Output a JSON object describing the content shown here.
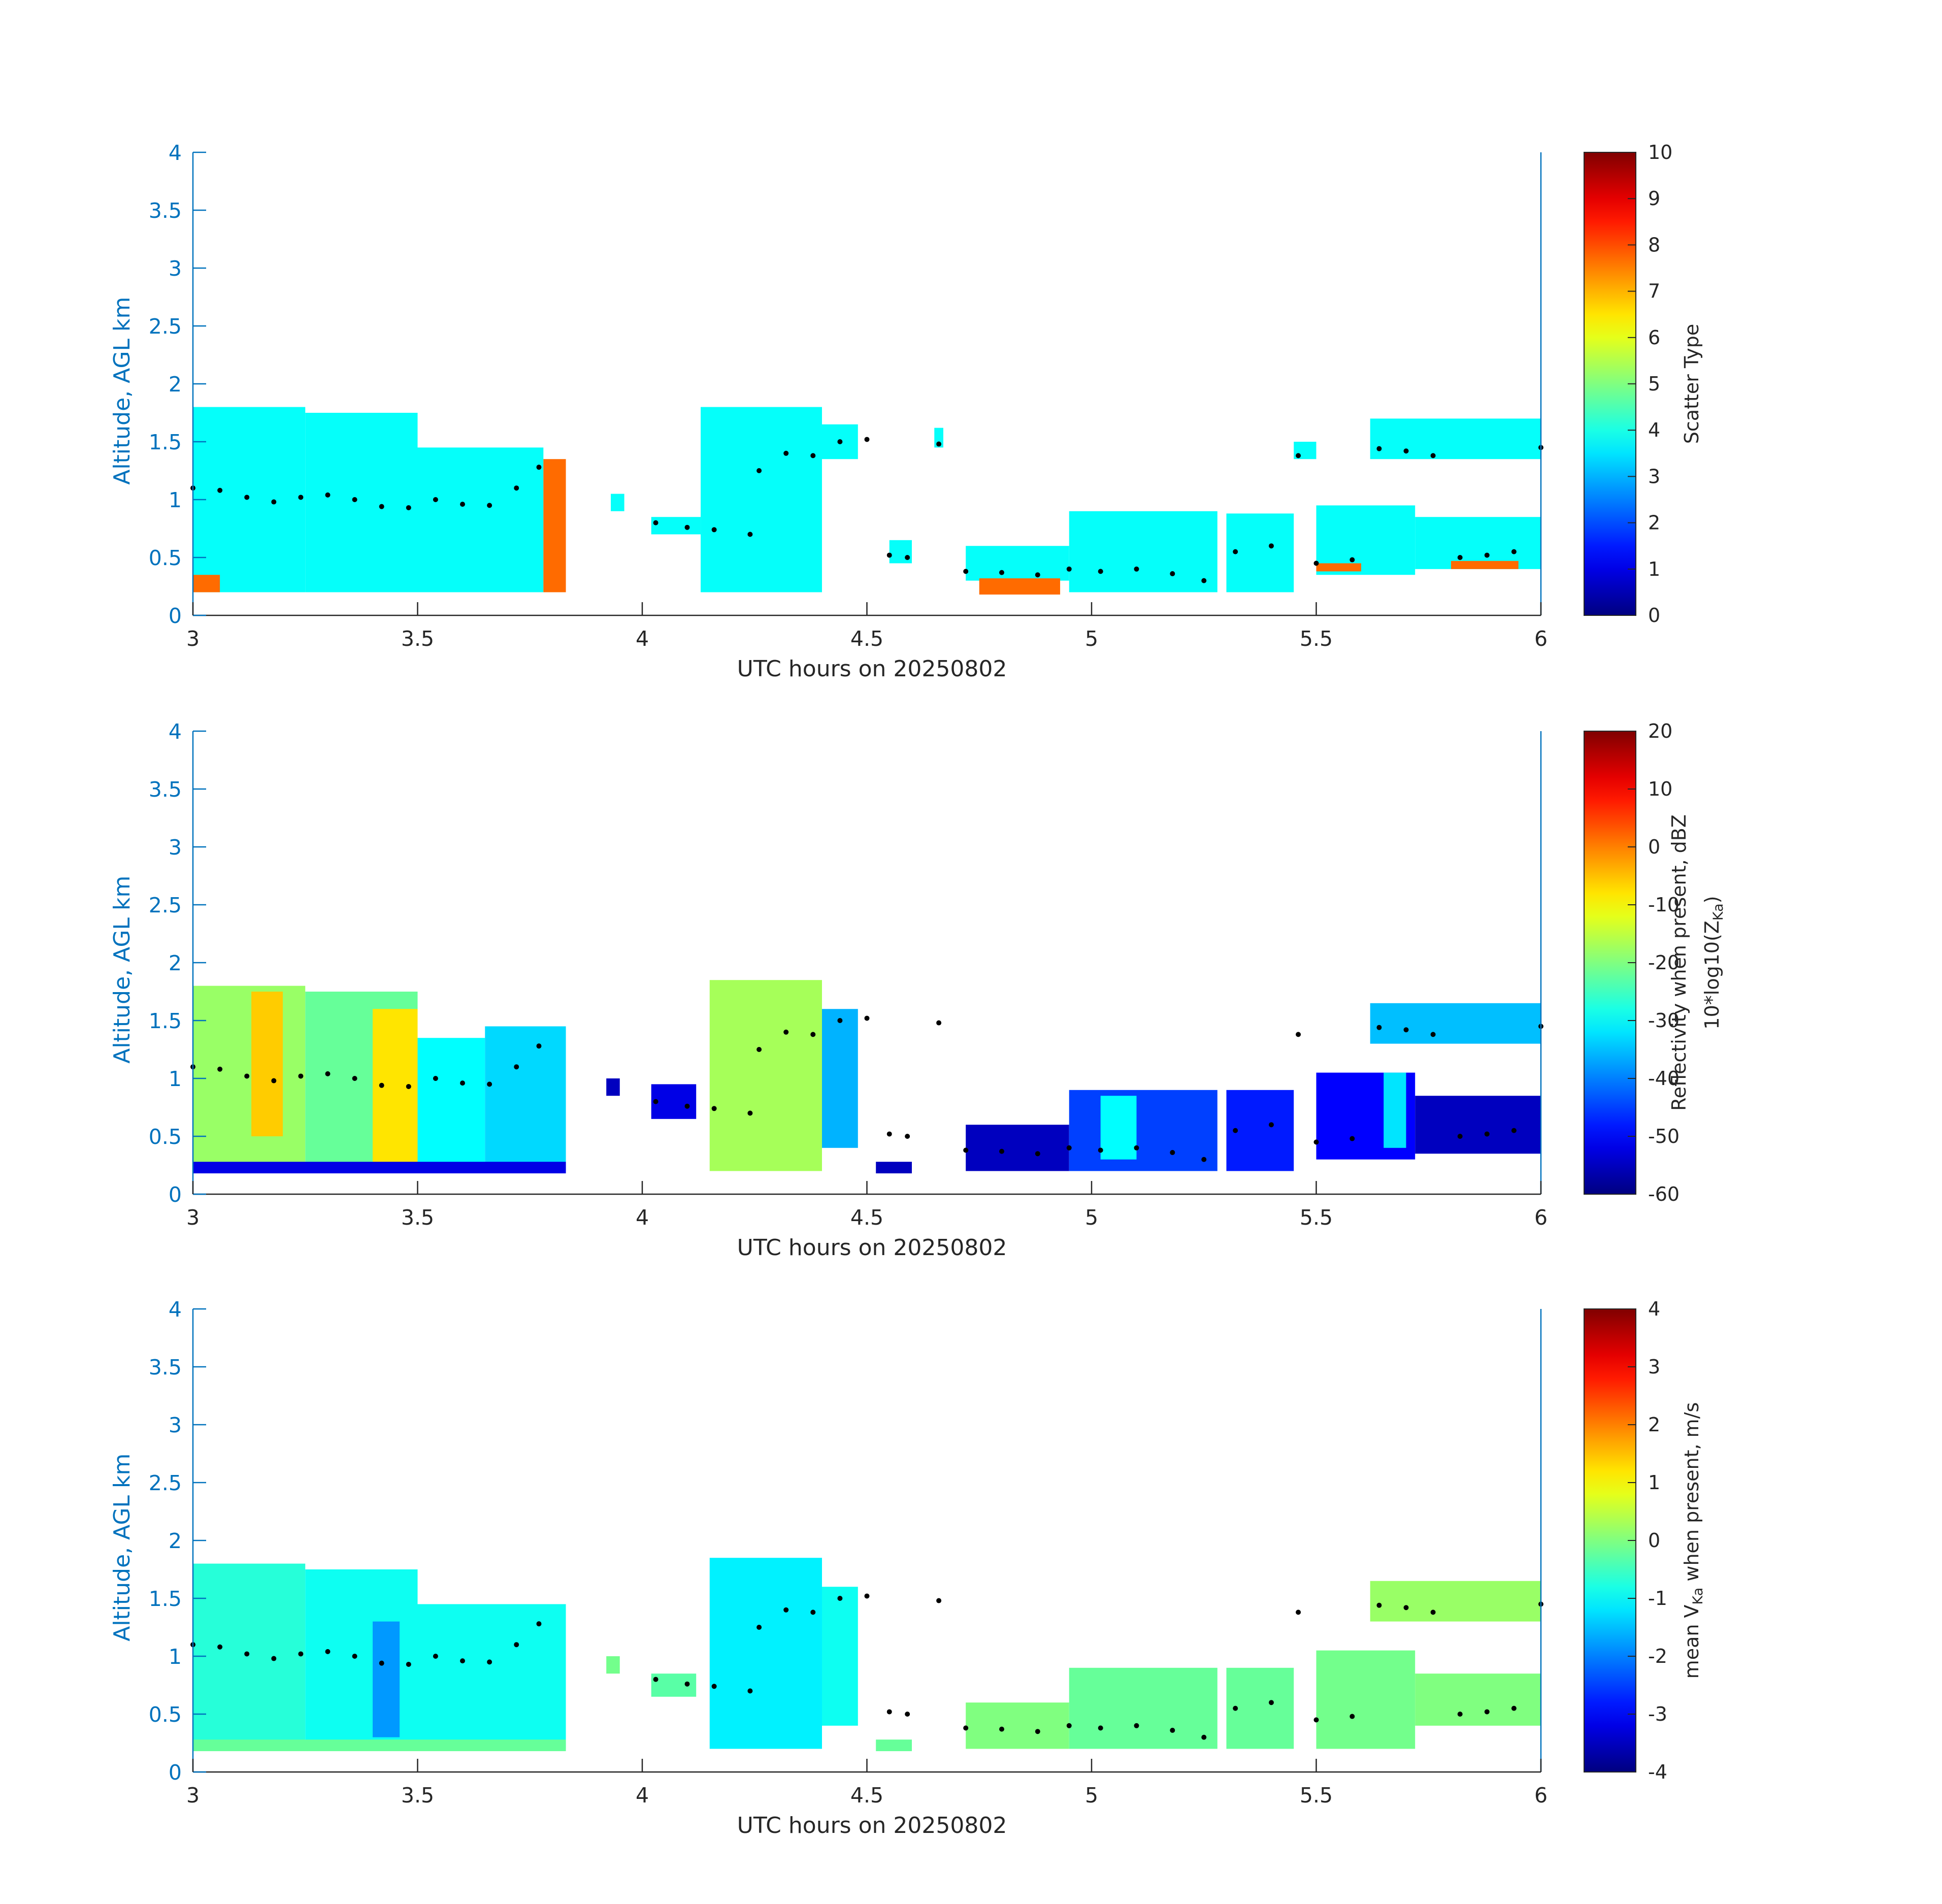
{
  "chart_data": [
    {
      "type": "heatmap",
      "title": "",
      "xlabel": "UTC hours on 20250802",
      "ylabel": "Altitude, AGL km",
      "xlim": [
        3,
        6
      ],
      "ylim": [
        0,
        4
      ],
      "x_ticks": [
        "3",
        "3.5",
        "4",
        "4.5",
        "5",
        "5.5",
        "6"
      ],
      "y_ticks": [
        "0",
        "0.5",
        "1",
        "1.5",
        "2",
        "2.5",
        "3",
        "3.5",
        "4"
      ],
      "colorbar": {
        "label": "Scatter Type",
        "range": [
          0,
          10
        ],
        "ticks": [
          "0",
          "1",
          "2",
          "3",
          "4",
          "5",
          "6",
          "7",
          "8",
          "9",
          "10"
        ]
      },
      "cells": [
        {
          "x0": 3.0,
          "x1": 3.25,
          "y0": 0.2,
          "y1": 1.8,
          "value": 3.8
        },
        {
          "x0": 3.25,
          "x1": 3.5,
          "y0": 0.2,
          "y1": 1.75,
          "value": 3.8
        },
        {
          "x0": 3.5,
          "x1": 3.78,
          "y0": 0.2,
          "y1": 1.45,
          "value": 3.8
        },
        {
          "x0": 3.78,
          "x1": 3.83,
          "y0": 0.2,
          "y1": 1.35,
          "value": 7.7
        },
        {
          "x0": 3.0,
          "x1": 3.06,
          "y0": 0.2,
          "y1": 0.35,
          "value": 7.7
        },
        {
          "x0": 3.93,
          "x1": 3.96,
          "y0": 0.9,
          "y1": 1.05,
          "value": 3.8
        },
        {
          "x0": 4.02,
          "x1": 4.13,
          "y0": 0.7,
          "y1": 0.85,
          "value": 3.8
        },
        {
          "x0": 4.13,
          "x1": 4.4,
          "y0": 0.2,
          "y1": 1.8,
          "value": 3.8
        },
        {
          "x0": 4.4,
          "x1": 4.48,
          "y0": 1.35,
          "y1": 1.65,
          "value": 3.8
        },
        {
          "x0": 4.55,
          "x1": 4.6,
          "y0": 0.45,
          "y1": 0.65,
          "value": 3.8
        },
        {
          "x0": 4.65,
          "x1": 4.67,
          "y0": 1.45,
          "y1": 1.62,
          "value": 3.8
        },
        {
          "x0": 4.72,
          "x1": 4.95,
          "y0": 0.3,
          "y1": 0.6,
          "value": 3.8
        },
        {
          "x0": 4.75,
          "x1": 4.93,
          "y0": 0.18,
          "y1": 0.32,
          "value": 7.7
        },
        {
          "x0": 4.95,
          "x1": 5.28,
          "y0": 0.2,
          "y1": 0.9,
          "value": 3.8
        },
        {
          "x0": 5.3,
          "x1": 5.45,
          "y0": 0.2,
          "y1": 0.88,
          "value": 3.8
        },
        {
          "x0": 5.45,
          "x1": 5.5,
          "y0": 1.35,
          "y1": 1.5,
          "value": 3.8
        },
        {
          "x0": 5.5,
          "x1": 5.72,
          "y0": 0.35,
          "y1": 0.95,
          "value": 3.8
        },
        {
          "x0": 5.5,
          "x1": 5.6,
          "y0": 0.38,
          "y1": 0.45,
          "value": 7.7
        },
        {
          "x0": 5.62,
          "x1": 6.0,
          "y0": 1.35,
          "y1": 1.7,
          "value": 3.8
        },
        {
          "x0": 5.72,
          "x1": 6.0,
          "y0": 0.4,
          "y1": 0.85,
          "value": 3.8
        },
        {
          "x0": 5.8,
          "x1": 5.95,
          "y0": 0.4,
          "y1": 0.47,
          "value": 7.7
        }
      ],
      "series": [
        {
          "type": "scatter",
          "x": [
            3.0,
            3.06,
            3.12,
            3.18,
            3.24,
            3.3,
            3.36,
            3.42,
            3.48,
            3.54,
            3.6,
            3.66,
            3.72,
            3.77,
            4.03,
            4.1,
            4.16,
            4.24,
            4.26,
            4.32,
            4.38,
            4.44,
            4.5,
            4.55,
            4.59,
            4.66,
            4.72,
            4.8,
            4.88,
            4.95,
            5.02,
            5.1,
            5.18,
            5.25,
            5.32,
            5.4,
            5.46,
            5.5,
            5.58,
            5.64,
            5.7,
            5.76,
            5.82,
            5.88,
            5.94,
            6.0
          ],
          "y": [
            1.1,
            1.08,
            1.02,
            0.98,
            1.02,
            1.04,
            1.0,
            0.94,
            0.93,
            1.0,
            0.96,
            0.95,
            1.1,
            1.28,
            0.8,
            0.76,
            0.74,
            0.7,
            1.25,
            1.4,
            1.38,
            1.5,
            1.52,
            0.52,
            0.5,
            1.48,
            0.38,
            0.37,
            0.35,
            0.4,
            0.38,
            0.4,
            0.36,
            0.3,
            0.55,
            0.6,
            1.38,
            0.45,
            0.48,
            1.44,
            1.42,
            1.38,
            0.5,
            0.52,
            0.55,
            1.45
          ]
        }
      ]
    },
    {
      "type": "heatmap",
      "title": "",
      "xlabel": "UTC hours on 20250802",
      "ylabel": "Altitude, AGL km",
      "xlim": [
        3,
        6
      ],
      "ylim": [
        0,
        4
      ],
      "x_ticks": [
        "3",
        "3.5",
        "4",
        "4.5",
        "5",
        "5.5",
        "6"
      ],
      "y_ticks": [
        "0",
        "0.5",
        "1",
        "1.5",
        "2",
        "2.5",
        "3",
        "3.5",
        "4"
      ],
      "colorbar": {
        "label_line1": "Reflectivity when present, dBZ",
        "label_line2": "10*log10(Z",
        "label_sub": "Ka",
        "label_close": ")",
        "range": [
          -60,
          20
        ],
        "ticks": [
          "-60",
          "-50",
          "-40",
          "-30",
          "-20",
          "-10",
          "0",
          "10",
          "20"
        ]
      },
      "cells": [
        {
          "x0": 3.0,
          "x1": 3.25,
          "y0": 0.2,
          "y1": 1.8,
          "value": -18
        },
        {
          "x0": 3.13,
          "x1": 3.2,
          "y0": 0.5,
          "y1": 1.75,
          "value": -6
        },
        {
          "x0": 3.25,
          "x1": 3.5,
          "y0": 0.2,
          "y1": 1.75,
          "value": -22
        },
        {
          "x0": 3.4,
          "x1": 3.5,
          "y0": 0.25,
          "y1": 1.6,
          "value": -8
        },
        {
          "x0": 3.5,
          "x1": 3.65,
          "y0": 0.2,
          "y1": 1.35,
          "value": -30
        },
        {
          "x0": 3.65,
          "x1": 3.83,
          "y0": 0.2,
          "y1": 1.45,
          "value": -33
        },
        {
          "x0": 3.0,
          "x1": 3.83,
          "y0": 0.18,
          "y1": 0.28,
          "value": -52
        },
        {
          "x0": 3.92,
          "x1": 3.95,
          "y0": 0.85,
          "y1": 1.0,
          "value": -55
        },
        {
          "x0": 4.02,
          "x1": 4.12,
          "y0": 0.65,
          "y1": 0.95,
          "value": -52
        },
        {
          "x0": 4.15,
          "x1": 4.4,
          "y0": 0.2,
          "y1": 1.85,
          "value": -17
        },
        {
          "x0": 4.4,
          "x1": 4.48,
          "y0": 0.4,
          "y1": 1.6,
          "value": -36
        },
        {
          "x0": 4.52,
          "x1": 4.6,
          "y0": 0.18,
          "y1": 0.28,
          "value": -55
        },
        {
          "x0": 4.72,
          "x1": 4.95,
          "y0": 0.2,
          "y1": 0.6,
          "value": -55
        },
        {
          "x0": 4.95,
          "x1": 5.28,
          "y0": 0.2,
          "y1": 0.9,
          "value": -45
        },
        {
          "x0": 5.02,
          "x1": 5.1,
          "y0": 0.3,
          "y1": 0.85,
          "value": -30
        },
        {
          "x0": 5.3,
          "x1": 5.45,
          "y0": 0.2,
          "y1": 0.9,
          "value": -48
        },
        {
          "x0": 5.5,
          "x1": 5.72,
          "y0": 0.3,
          "y1": 1.05,
          "value": -50
        },
        {
          "x0": 5.65,
          "x1": 5.7,
          "y0": 0.4,
          "y1": 1.05,
          "value": -32
        },
        {
          "x0": 5.62,
          "x1": 6.0,
          "y0": 1.3,
          "y1": 1.65,
          "value": -35
        },
        {
          "x0": 5.72,
          "x1": 6.0,
          "y0": 0.35,
          "y1": 0.85,
          "value": -55
        }
      ],
      "series": [
        {
          "type": "scatter",
          "x": [
            3.0,
            3.06,
            3.12,
            3.18,
            3.24,
            3.3,
            3.36,
            3.42,
            3.48,
            3.54,
            3.6,
            3.66,
            3.72,
            3.77,
            4.03,
            4.1,
            4.16,
            4.24,
            4.26,
            4.32,
            4.38,
            4.44,
            4.5,
            4.55,
            4.59,
            4.66,
            4.72,
            4.8,
            4.88,
            4.95,
            5.02,
            5.1,
            5.18,
            5.25,
            5.32,
            5.4,
            5.46,
            5.5,
            5.58,
            5.64,
            5.7,
            5.76,
            5.82,
            5.88,
            5.94,
            6.0
          ],
          "y": [
            1.1,
            1.08,
            1.02,
            0.98,
            1.02,
            1.04,
            1.0,
            0.94,
            0.93,
            1.0,
            0.96,
            0.95,
            1.1,
            1.28,
            0.8,
            0.76,
            0.74,
            0.7,
            1.25,
            1.4,
            1.38,
            1.5,
            1.52,
            0.52,
            0.5,
            1.48,
            0.38,
            0.37,
            0.35,
            0.4,
            0.38,
            0.4,
            0.36,
            0.3,
            0.55,
            0.6,
            1.38,
            0.45,
            0.48,
            1.44,
            1.42,
            1.38,
            0.5,
            0.52,
            0.55,
            1.45
          ]
        }
      ]
    },
    {
      "type": "heatmap",
      "title": "",
      "xlabel": "UTC hours on 20250802",
      "ylabel": "Altitude, AGL km",
      "xlim": [
        3,
        6
      ],
      "ylim": [
        0,
        4
      ],
      "x_ticks": [
        "3",
        "3.5",
        "4",
        "4.5",
        "5",
        "5.5",
        "6"
      ],
      "y_ticks": [
        "0",
        "0.5",
        "1",
        "1.5",
        "2",
        "2.5",
        "3",
        "3.5",
        "4"
      ],
      "colorbar": {
        "label_pre": "mean V",
        "label_sub": "Ka",
        "label_post": " when present, m/s",
        "range": [
          -4,
          4
        ],
        "ticks": [
          "-4",
          "-3",
          "-2",
          "-1",
          "0",
          "1",
          "2",
          "3",
          "4"
        ]
      },
      "cells": [
        {
          "x0": 3.0,
          "x1": 3.25,
          "y0": 0.2,
          "y1": 1.8,
          "value": -0.7
        },
        {
          "x0": 3.25,
          "x1": 3.5,
          "y0": 0.2,
          "y1": 1.75,
          "value": -0.9
        },
        {
          "x0": 3.5,
          "x1": 3.83,
          "y0": 0.2,
          "y1": 1.45,
          "value": -0.9
        },
        {
          "x0": 3.4,
          "x1": 3.46,
          "y0": 0.3,
          "y1": 1.3,
          "value": -1.8
        },
        {
          "x0": 3.0,
          "x1": 3.83,
          "y0": 0.18,
          "y1": 0.28,
          "value": -0.2
        },
        {
          "x0": 3.92,
          "x1": 3.95,
          "y0": 0.85,
          "y1": 1.0,
          "value": -0.1
        },
        {
          "x0": 4.02,
          "x1": 4.12,
          "y0": 0.65,
          "y1": 0.85,
          "value": -0.3
        },
        {
          "x0": 4.15,
          "x1": 4.4,
          "y0": 0.2,
          "y1": 1.85,
          "value": -1.1
        },
        {
          "x0": 4.4,
          "x1": 4.48,
          "y0": 0.4,
          "y1": 1.6,
          "value": -0.9
        },
        {
          "x0": 4.52,
          "x1": 4.6,
          "y0": 0.18,
          "y1": 0.28,
          "value": -0.2
        },
        {
          "x0": 4.72,
          "x1": 4.95,
          "y0": 0.2,
          "y1": 0.6,
          "value": 0.0
        },
        {
          "x0": 4.95,
          "x1": 5.28,
          "y0": 0.2,
          "y1": 0.9,
          "value": -0.2
        },
        {
          "x0": 5.3,
          "x1": 5.45,
          "y0": 0.2,
          "y1": 0.9,
          "value": -0.2
        },
        {
          "x0": 5.5,
          "x1": 5.72,
          "y0": 0.2,
          "y1": 1.05,
          "value": -0.1
        },
        {
          "x0": 5.62,
          "x1": 6.0,
          "y0": 1.3,
          "y1": 1.65,
          "value": 0.2
        },
        {
          "x0": 5.72,
          "x1": 6.0,
          "y0": 0.4,
          "y1": 0.85,
          "value": 0.0
        }
      ],
      "series": [
        {
          "type": "scatter",
          "x": [
            3.0,
            3.06,
            3.12,
            3.18,
            3.24,
            3.3,
            3.36,
            3.42,
            3.48,
            3.54,
            3.6,
            3.66,
            3.72,
            3.77,
            4.03,
            4.1,
            4.16,
            4.24,
            4.26,
            4.32,
            4.38,
            4.44,
            4.5,
            4.55,
            4.59,
            4.66,
            4.72,
            4.8,
            4.88,
            4.95,
            5.02,
            5.1,
            5.18,
            5.25,
            5.32,
            5.4,
            5.46,
            5.5,
            5.58,
            5.64,
            5.7,
            5.76,
            5.82,
            5.88,
            5.94,
            6.0
          ],
          "y": [
            1.1,
            1.08,
            1.02,
            0.98,
            1.02,
            1.04,
            1.0,
            0.94,
            0.93,
            1.0,
            0.96,
            0.95,
            1.1,
            1.28,
            0.8,
            0.76,
            0.74,
            0.7,
            1.25,
            1.4,
            1.38,
            1.5,
            1.52,
            0.52,
            0.5,
            1.48,
            0.38,
            0.37,
            0.35,
            0.4,
            0.38,
            0.4,
            0.36,
            0.3,
            0.55,
            0.6,
            1.38,
            0.45,
            0.48,
            1.44,
            1.42,
            1.38,
            0.5,
            0.52,
            0.55,
            1.45
          ]
        }
      ]
    }
  ],
  "style": {
    "axis_color": "#0072bd",
    "xtick_color": "#262626",
    "point_color": "#000000",
    "colormap": "jet"
  }
}
